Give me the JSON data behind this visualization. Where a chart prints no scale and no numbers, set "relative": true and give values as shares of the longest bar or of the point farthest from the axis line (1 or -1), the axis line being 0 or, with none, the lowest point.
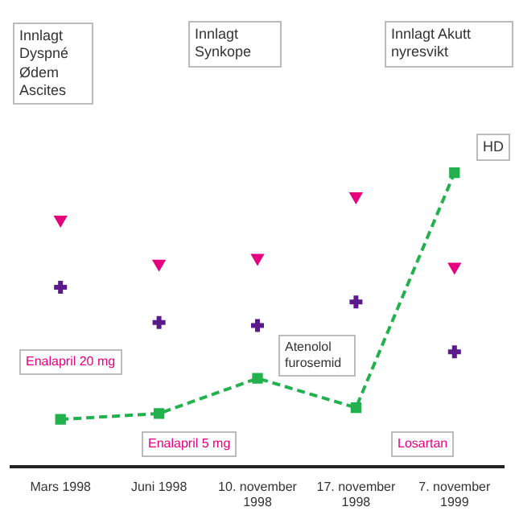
{
  "chart_data": {
    "type": "line",
    "relative": true,
    "categories": [
      "Mars 1998",
      "Juni 1998",
      "10. november 1998",
      "17. november 1998",
      "7. november 1999"
    ],
    "series": [
      {
        "type": "line",
        "color": "#22b14c",
        "marker": "square",
        "line_style": "dashed",
        "values": [
          0.16,
          0.18,
          0.3,
          0.2,
          1
        ]
      },
      {
        "type": "scatter",
        "color": "#e6007e",
        "marker": "triangle",
        "values": [
          0.84,
          0.69,
          0.71,
          0.92,
          0.68
        ]
      },
      {
        "type": "scatter",
        "color": "#5b1a8c",
        "marker": "cross",
        "values": [
          0.61,
          0.49,
          0.48,
          0.56,
          0.39
        ]
      }
    ],
    "annotations": [
      "Innlagt Dyspné Ødem Ascites",
      "Innlagt Synkope",
      "Innlagt Akutt nyresvikt",
      "HD",
      "Atenolol furosemid",
      "Enalapril 20 mg",
      "Enalapril 5 mg",
      "Losartan"
    ],
    "grid": false,
    "legend": false
  }
}
